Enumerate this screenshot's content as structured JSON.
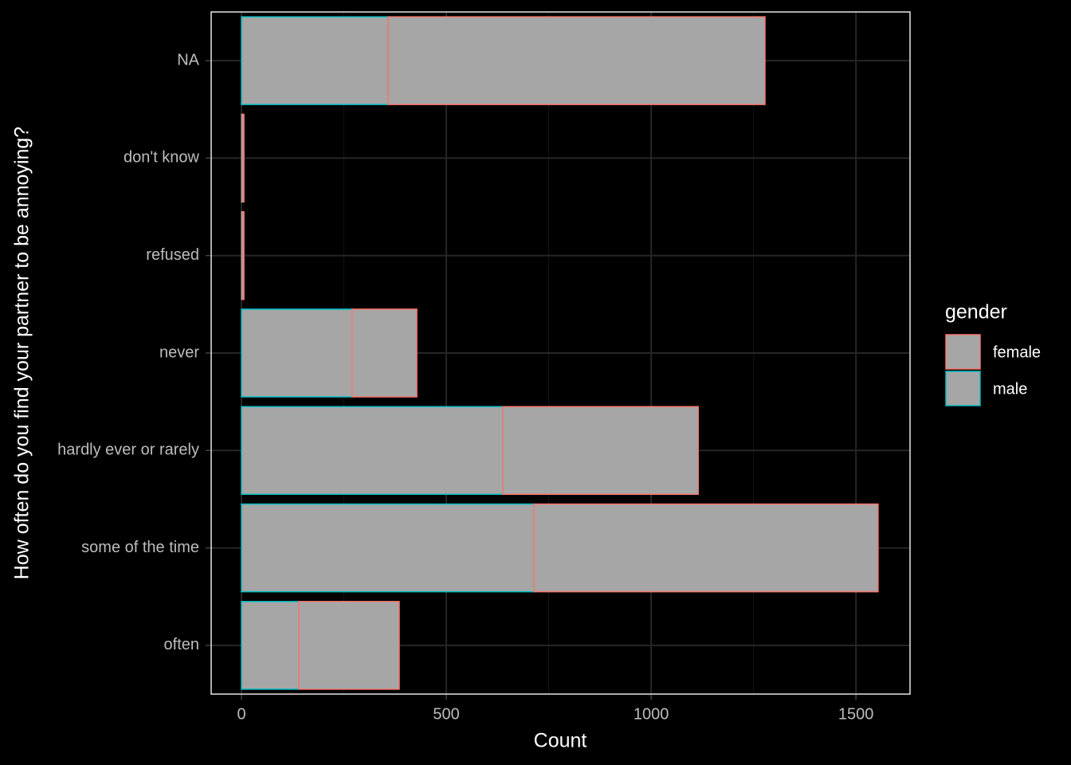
{
  "chart_data": {
    "type": "bar",
    "orientation": "horizontal",
    "stacked": true,
    "x_label": "Count",
    "y_label": "How often do you find your partner to be annoying?",
    "legend_title": "gender",
    "legend_position": "right",
    "categories": [
      "NA",
      "don't know",
      "refused",
      "never",
      "hardly ever or rarely",
      "some of the time",
      "often"
    ],
    "series": [
      {
        "name": "female",
        "color": "#f8766d",
        "values": [
          920,
          5,
          5,
          158,
          477,
          840,
          245
        ]
      },
      {
        "name": "male",
        "color": "#00bfc4",
        "values": [
          358,
          1,
          1,
          270,
          638,
          714,
          140
        ]
      }
    ],
    "fill": "#a6a6a6",
    "xlim": [
      -74,
      1632
    ],
    "xticks": [
      0,
      500,
      1000,
      1500
    ],
    "xminorgrid": [
      250,
      750,
      1250
    ],
    "grid": true
  }
}
